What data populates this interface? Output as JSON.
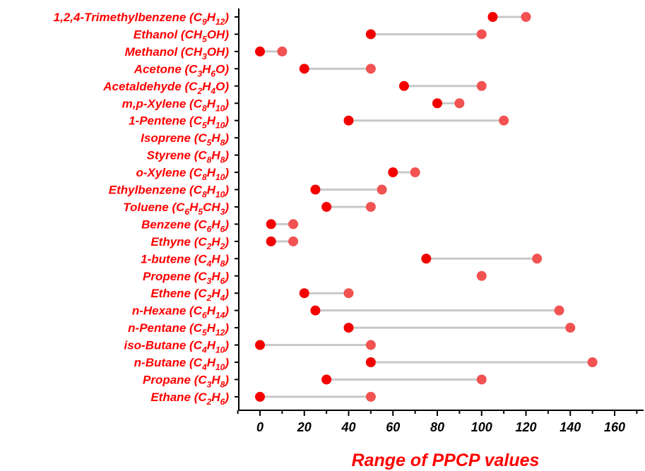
{
  "chart_data": {
    "type": "dumbbell",
    "title": "",
    "xlabel": "Range of PPCP values",
    "ylabel": "",
    "xlim": [
      -10,
      170
    ],
    "xticks": [
      0,
      20,
      40,
      60,
      80,
      100,
      120,
      140,
      160
    ],
    "grid": false,
    "colors": {
      "label": "#ff0000",
      "min_point": "#f40000",
      "max_point": "#f25252",
      "connector": "#c8c8c8",
      "axis": "#000000"
    },
    "categories": [
      {
        "name": "1,2,4-Trimethylbenzene (C",
        "formula": [
          [
            "9",
            "sub"
          ],
          [
            "H",
            ""
          ],
          [
            "12",
            "sub"
          ]
        ],
        "tail": ")",
        "min": 105,
        "max": 120
      },
      {
        "name": "Ethanol (CH",
        "formula": [
          [
            "5",
            "sub"
          ],
          [
            "OH",
            ""
          ]
        ],
        "tail": ")",
        "min": 50,
        "max": 100
      },
      {
        "name": "Methanol (CH",
        "formula": [
          [
            "3",
            "sub"
          ],
          [
            "OH",
            ""
          ]
        ],
        "tail": ")",
        "min": 0,
        "max": 10
      },
      {
        "name": "Acetone (C",
        "formula": [
          [
            "3",
            "sub"
          ],
          [
            "H",
            ""
          ],
          [
            "6",
            "sub"
          ],
          [
            "O",
            ""
          ]
        ],
        "tail": ")",
        "min": 20,
        "max": 50
      },
      {
        "name": "Acetaldehyde (C",
        "formula": [
          [
            "2",
            "sub"
          ],
          [
            "H",
            ""
          ],
          [
            "4",
            "sub"
          ],
          [
            "O",
            ""
          ]
        ],
        "tail": ")",
        "min": 65,
        "max": 100
      },
      {
        "name": "m,p-Xylene (C",
        "formula": [
          [
            "8",
            "sub"
          ],
          [
            "H",
            ""
          ],
          [
            "10",
            "sub"
          ]
        ],
        "tail": ")",
        "min": 80,
        "max": 90
      },
      {
        "name": "1-Pentene (C",
        "formula": [
          [
            "5",
            "sub"
          ],
          [
            "H",
            ""
          ],
          [
            "10",
            "sub"
          ]
        ],
        "tail": ")",
        "min": 40,
        "max": 110
      },
      {
        "name": "Isoprene (C",
        "formula": [
          [
            "5",
            "sub"
          ],
          [
            "H",
            ""
          ],
          [
            "8",
            "sub"
          ]
        ],
        "tail": ")",
        "min": null,
        "max": null
      },
      {
        "name": "Styrene (C",
        "formula": [
          [
            "8",
            "sub"
          ],
          [
            "H",
            ""
          ],
          [
            "8",
            "sub"
          ]
        ],
        "tail": ")",
        "min": null,
        "max": null
      },
      {
        "name": "o-Xylene (C",
        "formula": [
          [
            "8",
            "sub"
          ],
          [
            "H",
            ""
          ],
          [
            "10",
            "sub"
          ]
        ],
        "tail": ")",
        "min": 60,
        "max": 70
      },
      {
        "name": "Ethylbenzene (C",
        "formula": [
          [
            "8",
            "sub"
          ],
          [
            "H",
            ""
          ],
          [
            "10",
            "sub"
          ]
        ],
        "tail": ")",
        "min": 25,
        "max": 55
      },
      {
        "name": "Toluene (C",
        "formula": [
          [
            "6",
            "sub"
          ],
          [
            "H",
            ""
          ],
          [
            "5",
            "sub"
          ],
          [
            "CH",
            ""
          ],
          [
            "3",
            "sub"
          ]
        ],
        "tail": ")",
        "min": 30,
        "max": 50
      },
      {
        "name": "Benzene (C",
        "formula": [
          [
            "6",
            "sub"
          ],
          [
            "H",
            ""
          ],
          [
            "6",
            "sub"
          ]
        ],
        "tail": ")",
        "min": 5,
        "max": 15
      },
      {
        "name": "Ethyne (C",
        "formula": [
          [
            "2",
            "sub"
          ],
          [
            "H",
            ""
          ],
          [
            "2",
            "sub"
          ]
        ],
        "tail": ")",
        "min": 5,
        "max": 15
      },
      {
        "name": "1-butene (C",
        "formula": [
          [
            "4",
            "sub"
          ],
          [
            "H",
            ""
          ],
          [
            "8",
            "sub"
          ]
        ],
        "tail": ")",
        "min": 75,
        "max": 125
      },
      {
        "name": "Propene (C",
        "formula": [
          [
            "3",
            "sub"
          ],
          [
            "H",
            ""
          ],
          [
            "6",
            "sub"
          ]
        ],
        "tail": ")",
        "min": null,
        "max": 100
      },
      {
        "name": "Ethene (C",
        "formula": [
          [
            "2",
            "sub"
          ],
          [
            "H",
            ""
          ],
          [
            "4",
            "sub"
          ]
        ],
        "tail": ")",
        "min": 20,
        "max": 40
      },
      {
        "name": "n-Hexane (C",
        "formula": [
          [
            "6",
            "sub"
          ],
          [
            "H",
            ""
          ],
          [
            "14",
            "sub"
          ]
        ],
        "tail": ")",
        "min": 25,
        "max": 135
      },
      {
        "name": "n-Pentane (C",
        "formula": [
          [
            "5",
            "sub"
          ],
          [
            "H",
            ""
          ],
          [
            "12",
            "sub"
          ]
        ],
        "tail": ")",
        "min": 40,
        "max": 140
      },
      {
        "name": "iso-Butane (C",
        "formula": [
          [
            "4",
            "sub"
          ],
          [
            "H",
            ""
          ],
          [
            "10",
            "sub"
          ]
        ],
        "tail": ")",
        "min": 0,
        "max": 50
      },
      {
        "name": "n-Butane (C",
        "formula": [
          [
            "4",
            "sub"
          ],
          [
            "H",
            ""
          ],
          [
            "10",
            "sub"
          ]
        ],
        "tail": ")",
        "min": 50,
        "max": 150
      },
      {
        "name": "Propane (C",
        "formula": [
          [
            "3",
            "sub"
          ],
          [
            "H",
            ""
          ],
          [
            "8",
            "sub"
          ]
        ],
        "tail": ")",
        "min": 30,
        "max": 100
      },
      {
        "name": "Ethane (C",
        "formula": [
          [
            "2",
            "sub"
          ],
          [
            "H",
            ""
          ],
          [
            "6",
            "sub"
          ]
        ],
        "tail": ")",
        "min": 0,
        "max": 50
      }
    ]
  }
}
